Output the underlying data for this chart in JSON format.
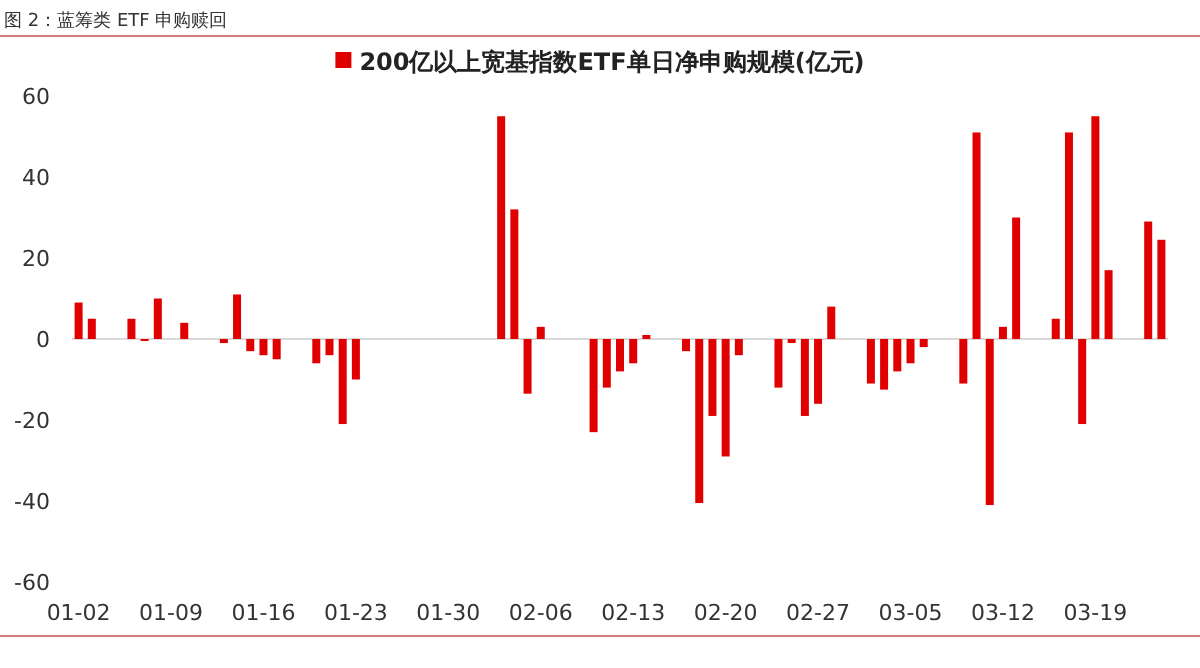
{
  "chart_data": {
    "type": "bar",
    "title": "图 2：蓝筹类 ETF 申购赎回",
    "categories": [
      "01-02",
      null,
      null,
      null,
      null,
      null,
      null,
      "01-09",
      null,
      null,
      null,
      null,
      null,
      null,
      "01-16",
      null,
      null,
      null,
      null,
      null,
      null,
      "01-23",
      null,
      null,
      null,
      null,
      null,
      null,
      "01-30",
      null,
      null,
      null,
      null,
      null,
      null,
      "02-06",
      null,
      null,
      null,
      null,
      null,
      null,
      "02-13",
      null,
      null,
      null,
      null,
      null,
      null,
      "02-20",
      null,
      null,
      null,
      null,
      null,
      null,
      "02-27",
      null,
      null,
      null,
      null,
      null,
      null,
      "03-05",
      null,
      null,
      null,
      null,
      null,
      null,
      "03-12",
      null,
      null,
      null,
      null,
      null,
      null,
      "03-19",
      null,
      null,
      null,
      null,
      null
    ],
    "series": [
      {
        "name": "200亿以上宽基指数ETF单日净申购规模(亿元)",
        "color": "#e00000",
        "values": [
          9,
          5,
          null,
          null,
          5,
          -0.5,
          10,
          null,
          4,
          null,
          null,
          -1,
          11,
          -3,
          -4,
          -5,
          null,
          null,
          -6,
          -4,
          -21,
          -10,
          null,
          null,
          null,
          null,
          null,
          null,
          null,
          null,
          null,
          null,
          55,
          32,
          -13.5,
          3,
          null,
          null,
          null,
          -23,
          -12,
          -8,
          -6,
          1,
          null,
          null,
          -3,
          -40.5,
          -19,
          -29,
          -4,
          null,
          null,
          -12,
          -1,
          -19,
          -16,
          8,
          null,
          null,
          -11,
          -12.5,
          -8,
          -6,
          -2,
          null,
          null,
          -11,
          51,
          -41,
          3,
          30,
          null,
          null,
          5,
          51,
          -21,
          55,
          17,
          null,
          null,
          29,
          24.5
        ]
      }
    ],
    "ylim": [
      -60,
      60
    ],
    "yticks": [
      -60,
      -40,
      -20,
      0,
      20,
      40,
      60
    ],
    "legend": "top"
  }
}
